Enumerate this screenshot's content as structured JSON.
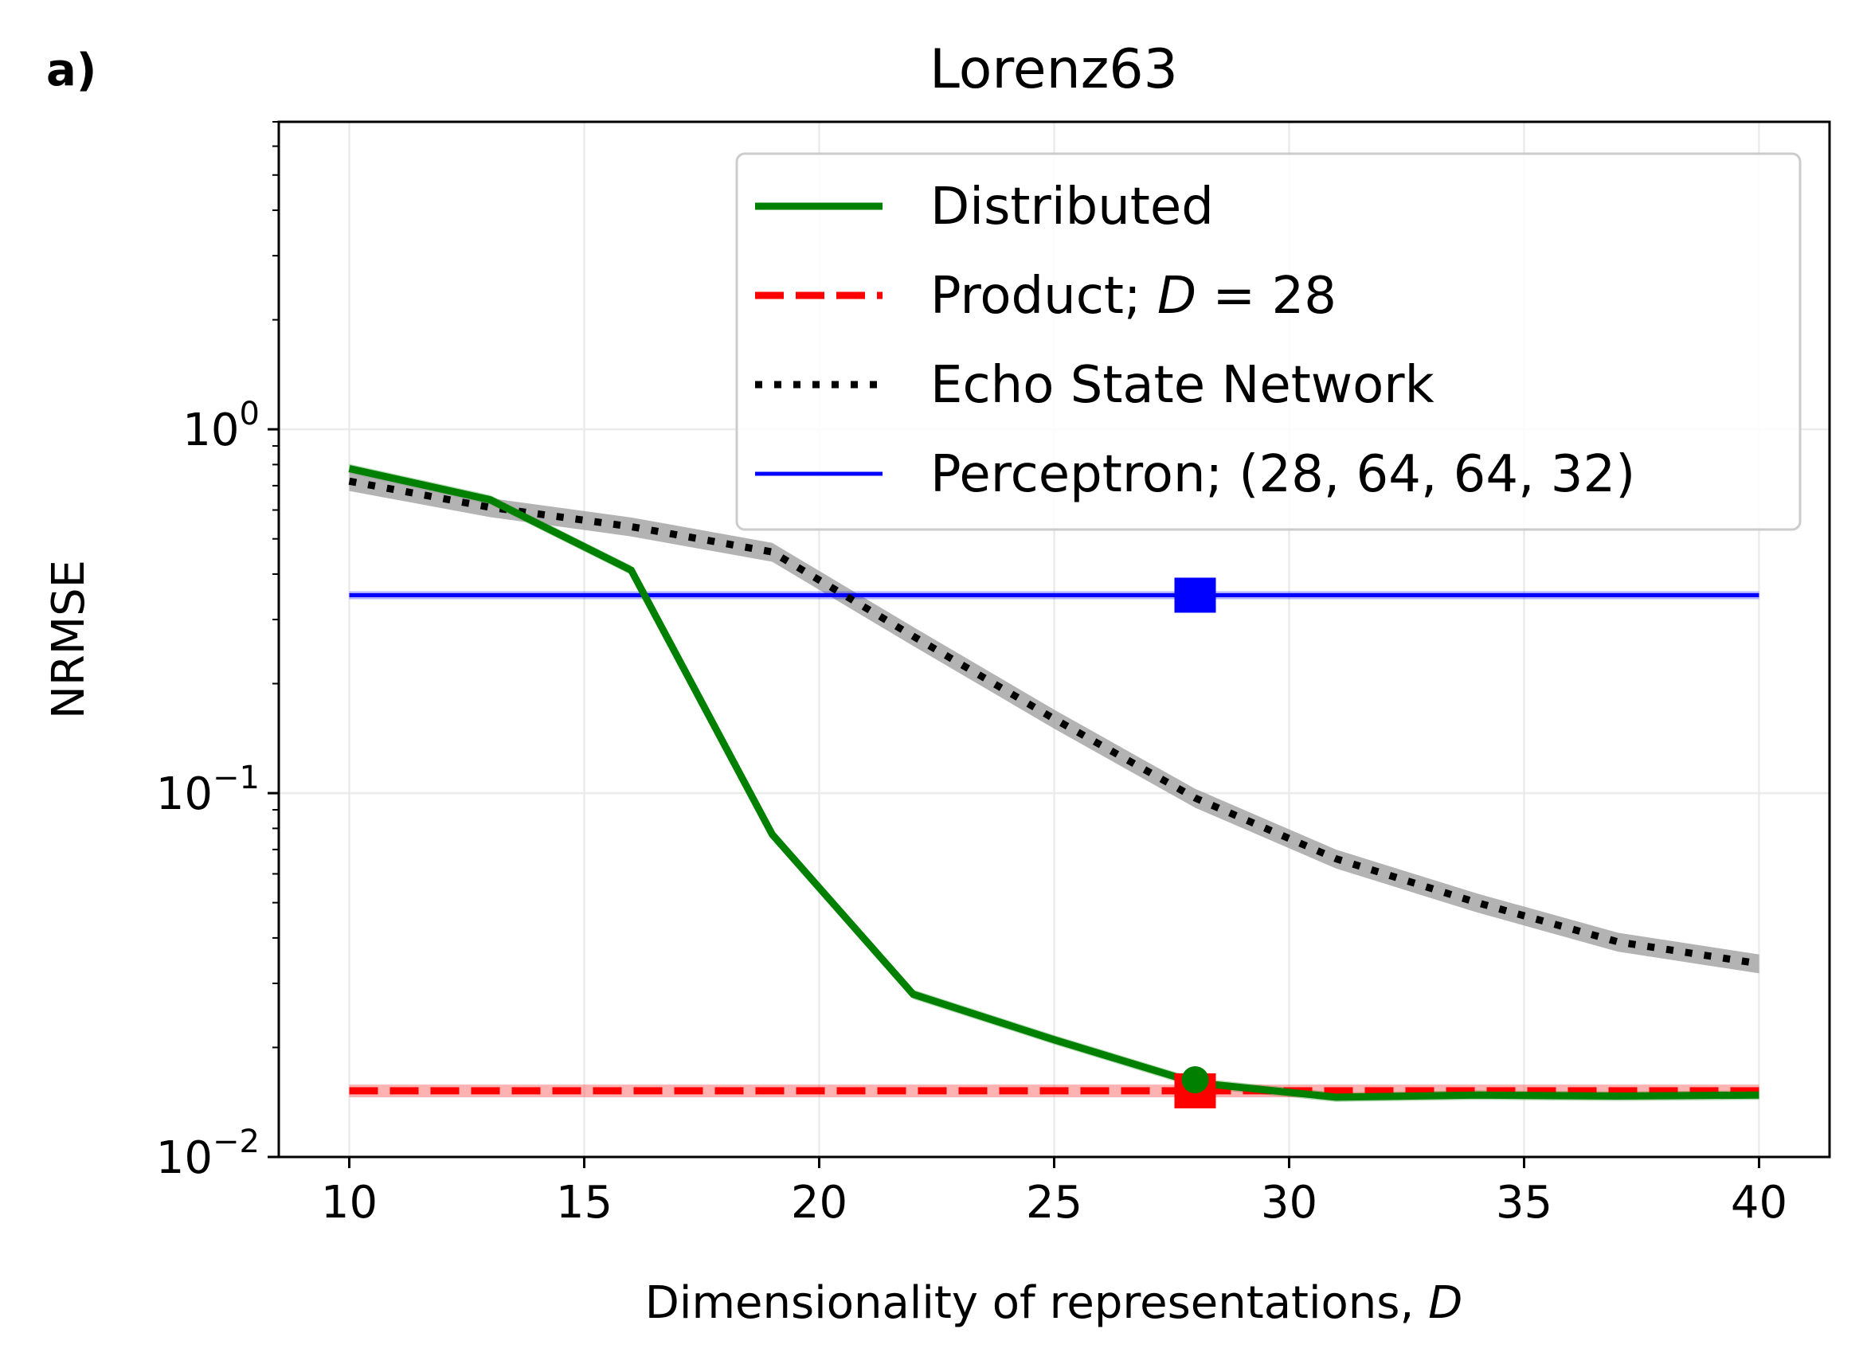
{
  "panel_label": "a)",
  "chart_data": {
    "type": "line",
    "title": "Lorenz63",
    "xlabel": "Dimensionality of representations,",
    "xlabel_var": "D",
    "ylabel": "NRMSE",
    "xlim": [
      8.5,
      41.5
    ],
    "ylim": [
      0.01,
      7
    ],
    "yscale": "log",
    "grid": true,
    "legend_position": "top-right",
    "xticks": [
      10,
      15,
      20,
      25,
      30,
      35,
      40
    ],
    "xtick_labels": [
      "10",
      "15",
      "20",
      "25",
      "30",
      "35",
      "40"
    ],
    "yticks": [
      0.01,
      0.1,
      1
    ],
    "ytick_labels": [
      {
        "base": "10",
        "exp": "−2"
      },
      {
        "base": "10",
        "exp": "−1"
      },
      {
        "base": "10",
        "exp": "0"
      }
    ],
    "series": [
      {
        "name": "Distributed",
        "color": "#008000",
        "style": "solid",
        "x": [
          10,
          13,
          16,
          19,
          22,
          25,
          28,
          31,
          34,
          37,
          40
        ],
        "y": [
          0.78,
          0.64,
          0.41,
          0.077,
          0.028,
          0.021,
          0.016,
          0.0146,
          0.0148,
          0.0147,
          0.0148
        ],
        "band": 0.03,
        "marker": {
          "x": 28,
          "y": 0.0163,
          "shape": "circle"
        }
      },
      {
        "name": "Product; D = 28",
        "legend_parts": {
          "prefix": "Product; ",
          "var": "D",
          "suffix": " = 28"
        },
        "color": "#ff0000",
        "style": "dashed",
        "x": [
          10,
          40
        ],
        "y": [
          0.0152,
          0.0152
        ],
        "band": 0.04,
        "marker": {
          "x": 28,
          "y": 0.0152,
          "shape": "square"
        }
      },
      {
        "name": "Echo State Network",
        "color": "#000000",
        "style": "dotted",
        "x": [
          10,
          13,
          16,
          19,
          22,
          25,
          28,
          31,
          34,
          37,
          40
        ],
        "y": [
          0.72,
          0.61,
          0.54,
          0.46,
          0.27,
          0.16,
          0.097,
          0.066,
          0.05,
          0.039,
          0.034
        ],
        "band": 0.06
      },
      {
        "name": "Perceptron; (28, 64, 64, 32)",
        "color": "#0000ff",
        "style": "solid",
        "x": [
          10,
          40
        ],
        "y": [
          0.35,
          0.35
        ],
        "band": 0.025,
        "marker": {
          "x": 28,
          "y": 0.35,
          "shape": "square"
        }
      }
    ]
  }
}
